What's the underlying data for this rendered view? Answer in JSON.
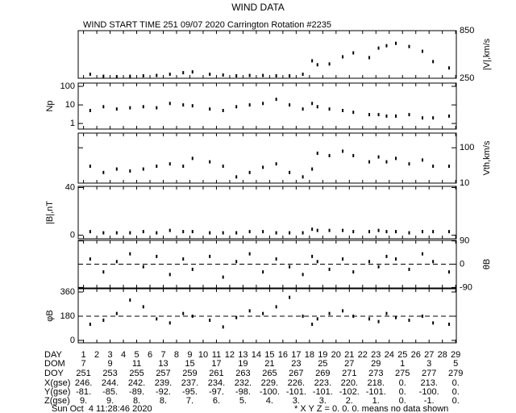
{
  "title": "WIND DATA",
  "subtitle": "WIND START TIME 251 09/07 2020 Carrington Rotation #2235",
  "chart_data": [
    {
      "type": "scatter",
      "ylabel": "|V|,km/s",
      "side": "right",
      "log": false,
      "ylim": [
        250,
        850
      ],
      "yticks": [
        250,
        850
      ],
      "x": [
        1.5,
        2.5,
        3.5,
        4.5,
        5.5,
        6.5,
        7.5,
        8.5,
        9.2,
        10.5,
        11.5,
        12.5,
        13.5,
        14.5,
        15.5,
        16.5,
        17.5,
        18.2,
        18.6,
        19.5,
        20.5,
        21.3,
        22.5,
        23.2,
        23.8,
        24.5,
        25.5,
        26.5,
        27.3,
        28.5
      ],
      "values": [
        300,
        275,
        270,
        275,
        280,
        285,
        300,
        320,
        330,
        300,
        290,
        280,
        285,
        285,
        280,
        280,
        300,
        470,
        420,
        430,
        520,
        570,
        510,
        630,
        660,
        690,
        650,
        590,
        460,
        380
      ]
    },
    {
      "type": "scatter",
      "ylabel": "Np",
      "side": "left",
      "log": true,
      "ylim": [
        0.5,
        150
      ],
      "yticks": [
        1,
        10,
        100
      ],
      "x": [
        1.5,
        2.5,
        3.5,
        4.5,
        5.5,
        6.5,
        7.5,
        8.5,
        9.2,
        10.5,
        11.5,
        12.5,
        13.5,
        14.5,
        15.5,
        16.5,
        17.5,
        18.2,
        18.6,
        19.5,
        20.5,
        21.3,
        22.5,
        23.2,
        23.8,
        24.5,
        25.5,
        26.5,
        27.3,
        28.5
      ],
      "values": [
        5,
        8,
        6,
        7,
        8,
        7,
        12,
        10,
        9,
        6,
        5,
        8,
        10,
        12,
        20,
        10,
        6,
        12,
        8,
        6,
        5,
        4,
        3,
        3,
        2.5,
        2.5,
        3,
        2,
        2,
        2.5
      ]
    },
    {
      "type": "scatter",
      "ylabel": "Vth,km/s",
      "side": "right",
      "log": true,
      "ylim": [
        10,
        260
      ],
      "yticks": [
        10,
        100
      ],
      "x": [
        1.5,
        2.5,
        3.5,
        4.5,
        5.5,
        6.5,
        7.5,
        8.5,
        9.2,
        10.5,
        11.5,
        12.5,
        13.5,
        14.5,
        15.5,
        16.5,
        17.5,
        18.2,
        18.6,
        19.5,
        20.5,
        21.3,
        22.5,
        23.2,
        23.8,
        24.5,
        25.5,
        26.5,
        27.3,
        28.5
      ],
      "values": [
        30,
        20,
        25,
        22,
        25,
        30,
        35,
        30,
        50,
        40,
        30,
        15,
        20,
        28,
        35,
        20,
        15,
        25,
        70,
        60,
        80,
        60,
        40,
        55,
        40,
        50,
        35,
        45,
        30,
        30
      ]
    },
    {
      "type": "scatter",
      "ylabel": "|B|,nT",
      "side": "left",
      "log": false,
      "ylim": [
        -3,
        41
      ],
      "yticks": [
        0,
        40
      ],
      "x": [
        1.5,
        2.5,
        3.5,
        4.5,
        5.5,
        6.5,
        7.5,
        8.5,
        9.2,
        10.5,
        11.5,
        12.5,
        13.5,
        14.5,
        15.5,
        16.5,
        17.5,
        18.2,
        18.6,
        19.5,
        20.5,
        21.3,
        22.5,
        23.2,
        23.8,
        24.5,
        25.5,
        26.5,
        27.3,
        28.5
      ],
      "values": [
        3,
        2,
        2,
        2,
        3,
        2,
        4,
        3,
        3,
        2,
        2,
        2,
        3,
        3,
        2,
        2,
        2,
        5,
        4,
        4,
        4,
        3,
        3,
        4,
        3,
        3,
        2,
        3,
        3,
        3
      ]
    },
    {
      "type": "scatter",
      "ylabel": "θB",
      "side": "right",
      "log": false,
      "ylim": [
        -92,
        92
      ],
      "yticks": [
        -90,
        0,
        90
      ],
      "reference_line": 0,
      "x": [
        1.5,
        2.5,
        3.5,
        4.5,
        5.5,
        6.5,
        7.5,
        8.5,
        9.2,
        10.5,
        11.5,
        12.5,
        13.5,
        14.5,
        15.5,
        16.5,
        17.5,
        18.2,
        18.6,
        19.5,
        20.5,
        21.3,
        22.5,
        23.2,
        23.8,
        24.5,
        25.5,
        26.5,
        27.3,
        28.5
      ],
      "values": [
        20,
        -30,
        10,
        40,
        -10,
        30,
        -40,
        20,
        -20,
        30,
        -50,
        10,
        40,
        -30,
        20,
        -10,
        -40,
        30,
        10,
        -20,
        20,
        -30,
        10,
        -10,
        30,
        20,
        -20,
        40,
        10,
        -30
      ]
    },
    {
      "type": "scatter",
      "ylabel": "φB",
      "side": "left",
      "log": false,
      "ylim": [
        -18,
        384
      ],
      "yticks": [
        0,
        180,
        360
      ],
      "reference_line": 180,
      "x": [
        1.5,
        2.5,
        3.5,
        4.5,
        5.5,
        6.5,
        7.5,
        8.5,
        9.2,
        10.5,
        11.5,
        12.5,
        13.5,
        14.5,
        15.5,
        16.5,
        17.5,
        18.2,
        18.6,
        19.5,
        20.5,
        21.3,
        22.5,
        23.2,
        23.8,
        24.5,
        25.5,
        26.5,
        27.3,
        28.5
      ],
      "values": [
        120,
        150,
        200,
        300,
        250,
        160,
        130,
        200,
        180,
        150,
        100,
        170,
        220,
        200,
        250,
        320,
        180,
        120,
        160,
        200,
        220,
        180,
        160,
        140,
        200,
        170,
        150,
        180,
        130,
        120
      ]
    }
  ],
  "xlim": [
    0.6,
    29.05
  ],
  "table": {
    "rows": [
      {
        "label": "DAY",
        "values": [
          1,
          2,
          3,
          4,
          5,
          6,
          7,
          8,
          9,
          10,
          11,
          12,
          13,
          14,
          15,
          16,
          17,
          18,
          19,
          20,
          21,
          22,
          23,
          24,
          25,
          26,
          27,
          28,
          29
        ]
      },
      {
        "label": "DOM",
        "values": [
          "7",
          "9",
          "11",
          "13",
          "15",
          "17",
          "19",
          "21",
          "23",
          "25",
          "27",
          "29",
          "1",
          "3",
          "5"
        ]
      },
      {
        "label": "DOY",
        "values": [
          "251",
          "253",
          "255",
          "257",
          "259",
          "261",
          "263",
          "265",
          "267",
          "269",
          "271",
          "273",
          "275",
          "277",
          "279"
        ]
      },
      {
        "label": "X(gse)",
        "values": [
          "246.",
          "244.",
          "242.",
          "239.",
          "237.",
          "234.",
          "232.",
          "229.",
          "226.",
          "223.",
          "220.",
          "218.",
          "0.",
          "213.",
          "0."
        ]
      },
      {
        "label": "Y(gse)",
        "values": [
          "-81.",
          "-85.",
          "-89.",
          "-92.",
          "-95.",
          "-97.",
          "-98.",
          "-100.",
          "-101.",
          "-101.",
          "-102.",
          "-101.",
          "0.",
          "-100.",
          "0."
        ]
      },
      {
        "label": "Z(gse)",
        "values": [
          "9.",
          "9.",
          "8.",
          "8.",
          "7.",
          "6.",
          "5.",
          "4.",
          "3.",
          "3.",
          "2.",
          "1.",
          "0.",
          "-1.",
          "0."
        ]
      }
    ]
  },
  "footer": {
    "timestamp": "Sun Oct  4 11:28:46 2020",
    "note": "* X Y Z = 0. 0. 0. means no data shown"
  }
}
